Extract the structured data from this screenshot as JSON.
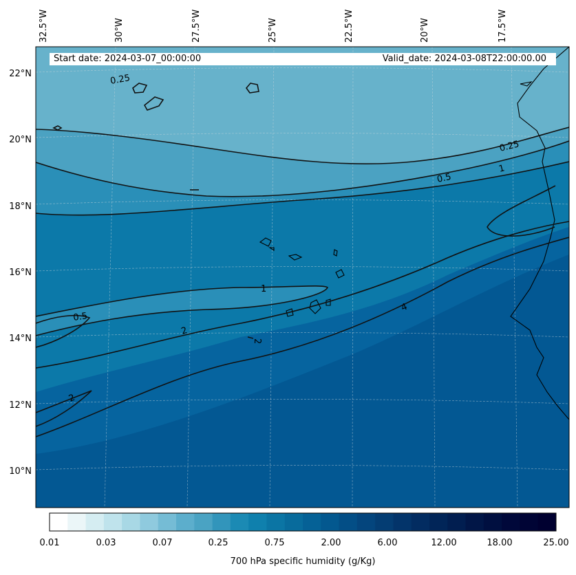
{
  "map": {
    "variable": "700 hPa specific humidity",
    "start_label": "Start date: 2024-03-07_00:00:00",
    "valid_label": "Valid_date: 2024-03-08T22:00:00.00",
    "lon_labels": [
      "32.5°W",
      "30°W",
      "27.5°W",
      "25°W",
      "22.5°W",
      "20°W",
      "17.5°W"
    ],
    "lat_labels": [
      "22°N",
      "20°N",
      "18°N",
      "16°N",
      "14°N",
      "12°N",
      "10°N"
    ],
    "contour_labels": [
      "0.25",
      "0.25",
      "0.5",
      "1",
      "0.5",
      "1",
      "2",
      "2",
      "4",
      "2"
    ],
    "colors": {
      "level_0_25": "#67b2cb",
      "level_0_5": "#4ba2c2",
      "level_1": "#2a8fb8",
      "level_2": "#0c79a9",
      "level_4": "#06649f",
      "level_6": "#035893",
      "contour": "#111111"
    }
  },
  "colorbar": {
    "title": "700 hPa specific humidity (g/Kg)",
    "ticks": [
      "0.01",
      "0.03",
      "0.07",
      "0.25",
      "0.75",
      "2.00",
      "6.00",
      "12.00",
      "18.00",
      "25.00"
    ],
    "segment_colors": [
      "#ffffff",
      "#ebf6f8",
      "#d5edf2",
      "#bfe3ec",
      "#a8d8e5",
      "#8fcade",
      "#75bcd5",
      "#5caecc",
      "#4aa3c3",
      "#3295bb",
      "#1b8ab4",
      "#0f80ad",
      "#0b75a4",
      "#086b9c",
      "#056196",
      "#03588f",
      "#034e86",
      "#04457d",
      "#043d73",
      "#03346a",
      "#022c61",
      "#012558",
      "#011e50",
      "#011647",
      "#000f40",
      "#00083a",
      "#000435",
      "#000030"
    ]
  }
}
